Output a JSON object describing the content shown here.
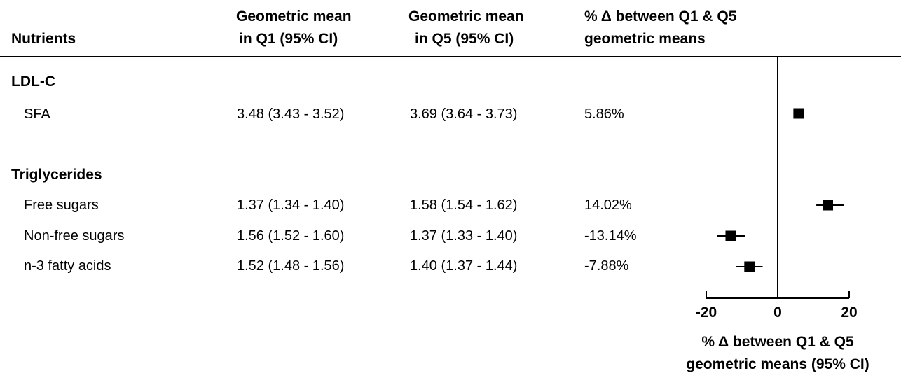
{
  "headers": {
    "nutrients": "Nutrients",
    "q1_line1": "Geometric mean",
    "q1_line2": "in Q1 (95% CI)",
    "q5_line1": "Geometric mean",
    "q5_line2": "in Q5 (95% CI)",
    "pct_line1": "% Δ between Q1 & Q5",
    "pct_line2": "geometric means"
  },
  "groups": [
    {
      "name": "LDL-C",
      "rows": [
        {
          "nutrient": "SFA",
          "q1": "3.48 (3.43 - 3.52)",
          "q5": "3.69 (3.64 - 3.73)",
          "pct": "5.86%"
        }
      ]
    },
    {
      "name": "Triglycerides",
      "rows": [
        {
          "nutrient": "Free sugars",
          "q1": "1.37 (1.34 - 1.40)",
          "q5": "1.58 (1.54 - 1.62)",
          "pct": "14.02%"
        },
        {
          "nutrient": "Non-free sugars",
          "q1": "1.56 (1.52 - 1.60)",
          "q5": "1.37 (1.33 - 1.40)",
          "pct": "-13.14%"
        },
        {
          "nutrient": "n-3 fatty acids",
          "q1": "1.52 (1.48 - 1.56)",
          "q5": "1.40 (1.37 - 1.44)",
          "pct": "-7.88%"
        }
      ]
    }
  ],
  "chart_data": {
    "type": "forest",
    "xlabel_line1": "% Δ between Q1 & Q5",
    "xlabel_line2": "geometric means (95% CI)",
    "xlim": [
      -20,
      20
    ],
    "xticks": [
      -20,
      0,
      20
    ],
    "xtick_labels": [
      "-20",
      "0",
      "20"
    ],
    "reference_line": 0,
    "points": [
      {
        "label": "SFA",
        "estimate": 5.86,
        "ci_low": 4.4,
        "ci_high": 7.3
      },
      {
        "label": "Free sugars",
        "estimate": 14.02,
        "ci_low": 10.8,
        "ci_high": 18.6
      },
      {
        "label": "Non-free sugars",
        "estimate": -13.14,
        "ci_low": -17.0,
        "ci_high": -9.2
      },
      {
        "label": "n-3 fatty acids",
        "estimate": -7.88,
        "ci_low": -11.6,
        "ci_high": -4.2
      }
    ]
  }
}
